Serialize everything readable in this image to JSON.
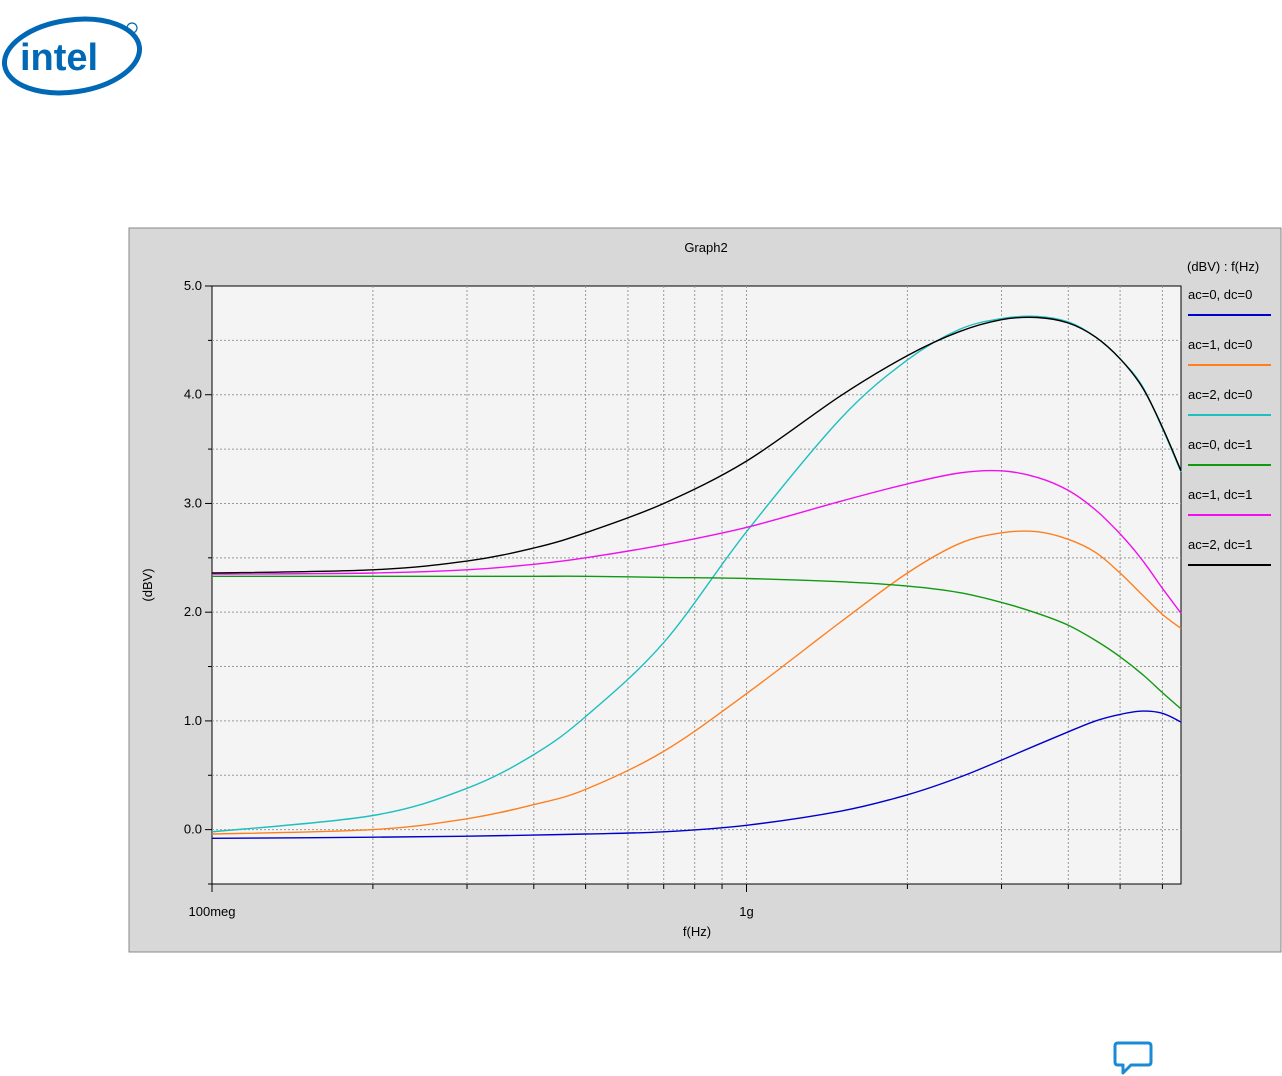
{
  "brand": {
    "logo_text": "intel",
    "logo_color": "#0068b5"
  },
  "chart_data": {
    "type": "line",
    "title": "Graph2",
    "xlabel": "f(Hz)",
    "ylabel": "(dBV)",
    "legend_title": "(dBV) : f(Hz)",
    "legend_position": "right",
    "x_scale": "log",
    "xlim": [
      100000000,
      6500000000
    ],
    "ylim": [
      -0.5,
      5.0
    ],
    "grid": true,
    "y_ticks": [
      {
        "value": 0.0,
        "label": "0.0"
      },
      {
        "value": 1.0,
        "label": "1.0"
      },
      {
        "value": 2.0,
        "label": "2.0"
      },
      {
        "value": 3.0,
        "label": "3.0"
      },
      {
        "value": 4.0,
        "label": "4.0"
      },
      {
        "value": 5.0,
        "label": "5.0"
      }
    ],
    "x_tick_labels": [
      {
        "value": 100000000,
        "label": "100meg"
      },
      {
        "value": 1000000000,
        "label": "1g"
      }
    ],
    "x": [
      100000000,
      200000000,
      300000000,
      400000000,
      500000000,
      700000000,
      1000000000,
      1500000000,
      2000000000,
      2500000000,
      3000000000,
      3500000000,
      4000000000,
      4500000000,
      5000000000,
      5500000000,
      6000000000,
      6500000000
    ],
    "series": [
      {
        "name": "ac=0, dc=0",
        "color": "#0000cc",
        "values": [
          -0.08,
          -0.07,
          -0.06,
          -0.05,
          -0.04,
          -0.02,
          0.04,
          0.17,
          0.32,
          0.48,
          0.64,
          0.78,
          0.9,
          1.0,
          1.06,
          1.09,
          1.07,
          0.99
        ]
      },
      {
        "name": "ac=1, dc=0",
        "color": "#ff7f1f",
        "values": [
          -0.04,
          0.0,
          0.1,
          0.23,
          0.37,
          0.72,
          1.25,
          1.91,
          2.36,
          2.63,
          2.73,
          2.74,
          2.67,
          2.55,
          2.36,
          2.16,
          1.98,
          1.85
        ]
      },
      {
        "name": "ac=2, dc=0",
        "color": "#1fbfbf",
        "values": [
          -0.02,
          0.13,
          0.38,
          0.69,
          1.04,
          1.72,
          2.74,
          3.78,
          4.32,
          4.6,
          4.7,
          4.72,
          4.67,
          4.53,
          4.33,
          4.08,
          3.69,
          3.29
        ]
      },
      {
        "name": "ac=0, dc=1",
        "color": "#119911",
        "values": [
          2.33,
          2.33,
          2.33,
          2.33,
          2.33,
          2.32,
          2.31,
          2.28,
          2.24,
          2.18,
          2.09,
          1.99,
          1.88,
          1.74,
          1.59,
          1.43,
          1.26,
          1.11
        ]
      },
      {
        "name": "ac=1, dc=1",
        "color": "#ee11ee",
        "values": [
          2.35,
          2.36,
          2.39,
          2.44,
          2.5,
          2.62,
          2.78,
          3.02,
          3.18,
          3.28,
          3.3,
          3.24,
          3.12,
          2.94,
          2.72,
          2.48,
          2.22,
          1.99
        ]
      },
      {
        "name": "ac=2, dc=1",
        "color": "#000000",
        "values": [
          2.36,
          2.39,
          2.47,
          2.59,
          2.73,
          3.0,
          3.39,
          3.99,
          4.36,
          4.58,
          4.69,
          4.71,
          4.66,
          4.53,
          4.33,
          4.07,
          3.7,
          3.3
        ]
      }
    ]
  }
}
